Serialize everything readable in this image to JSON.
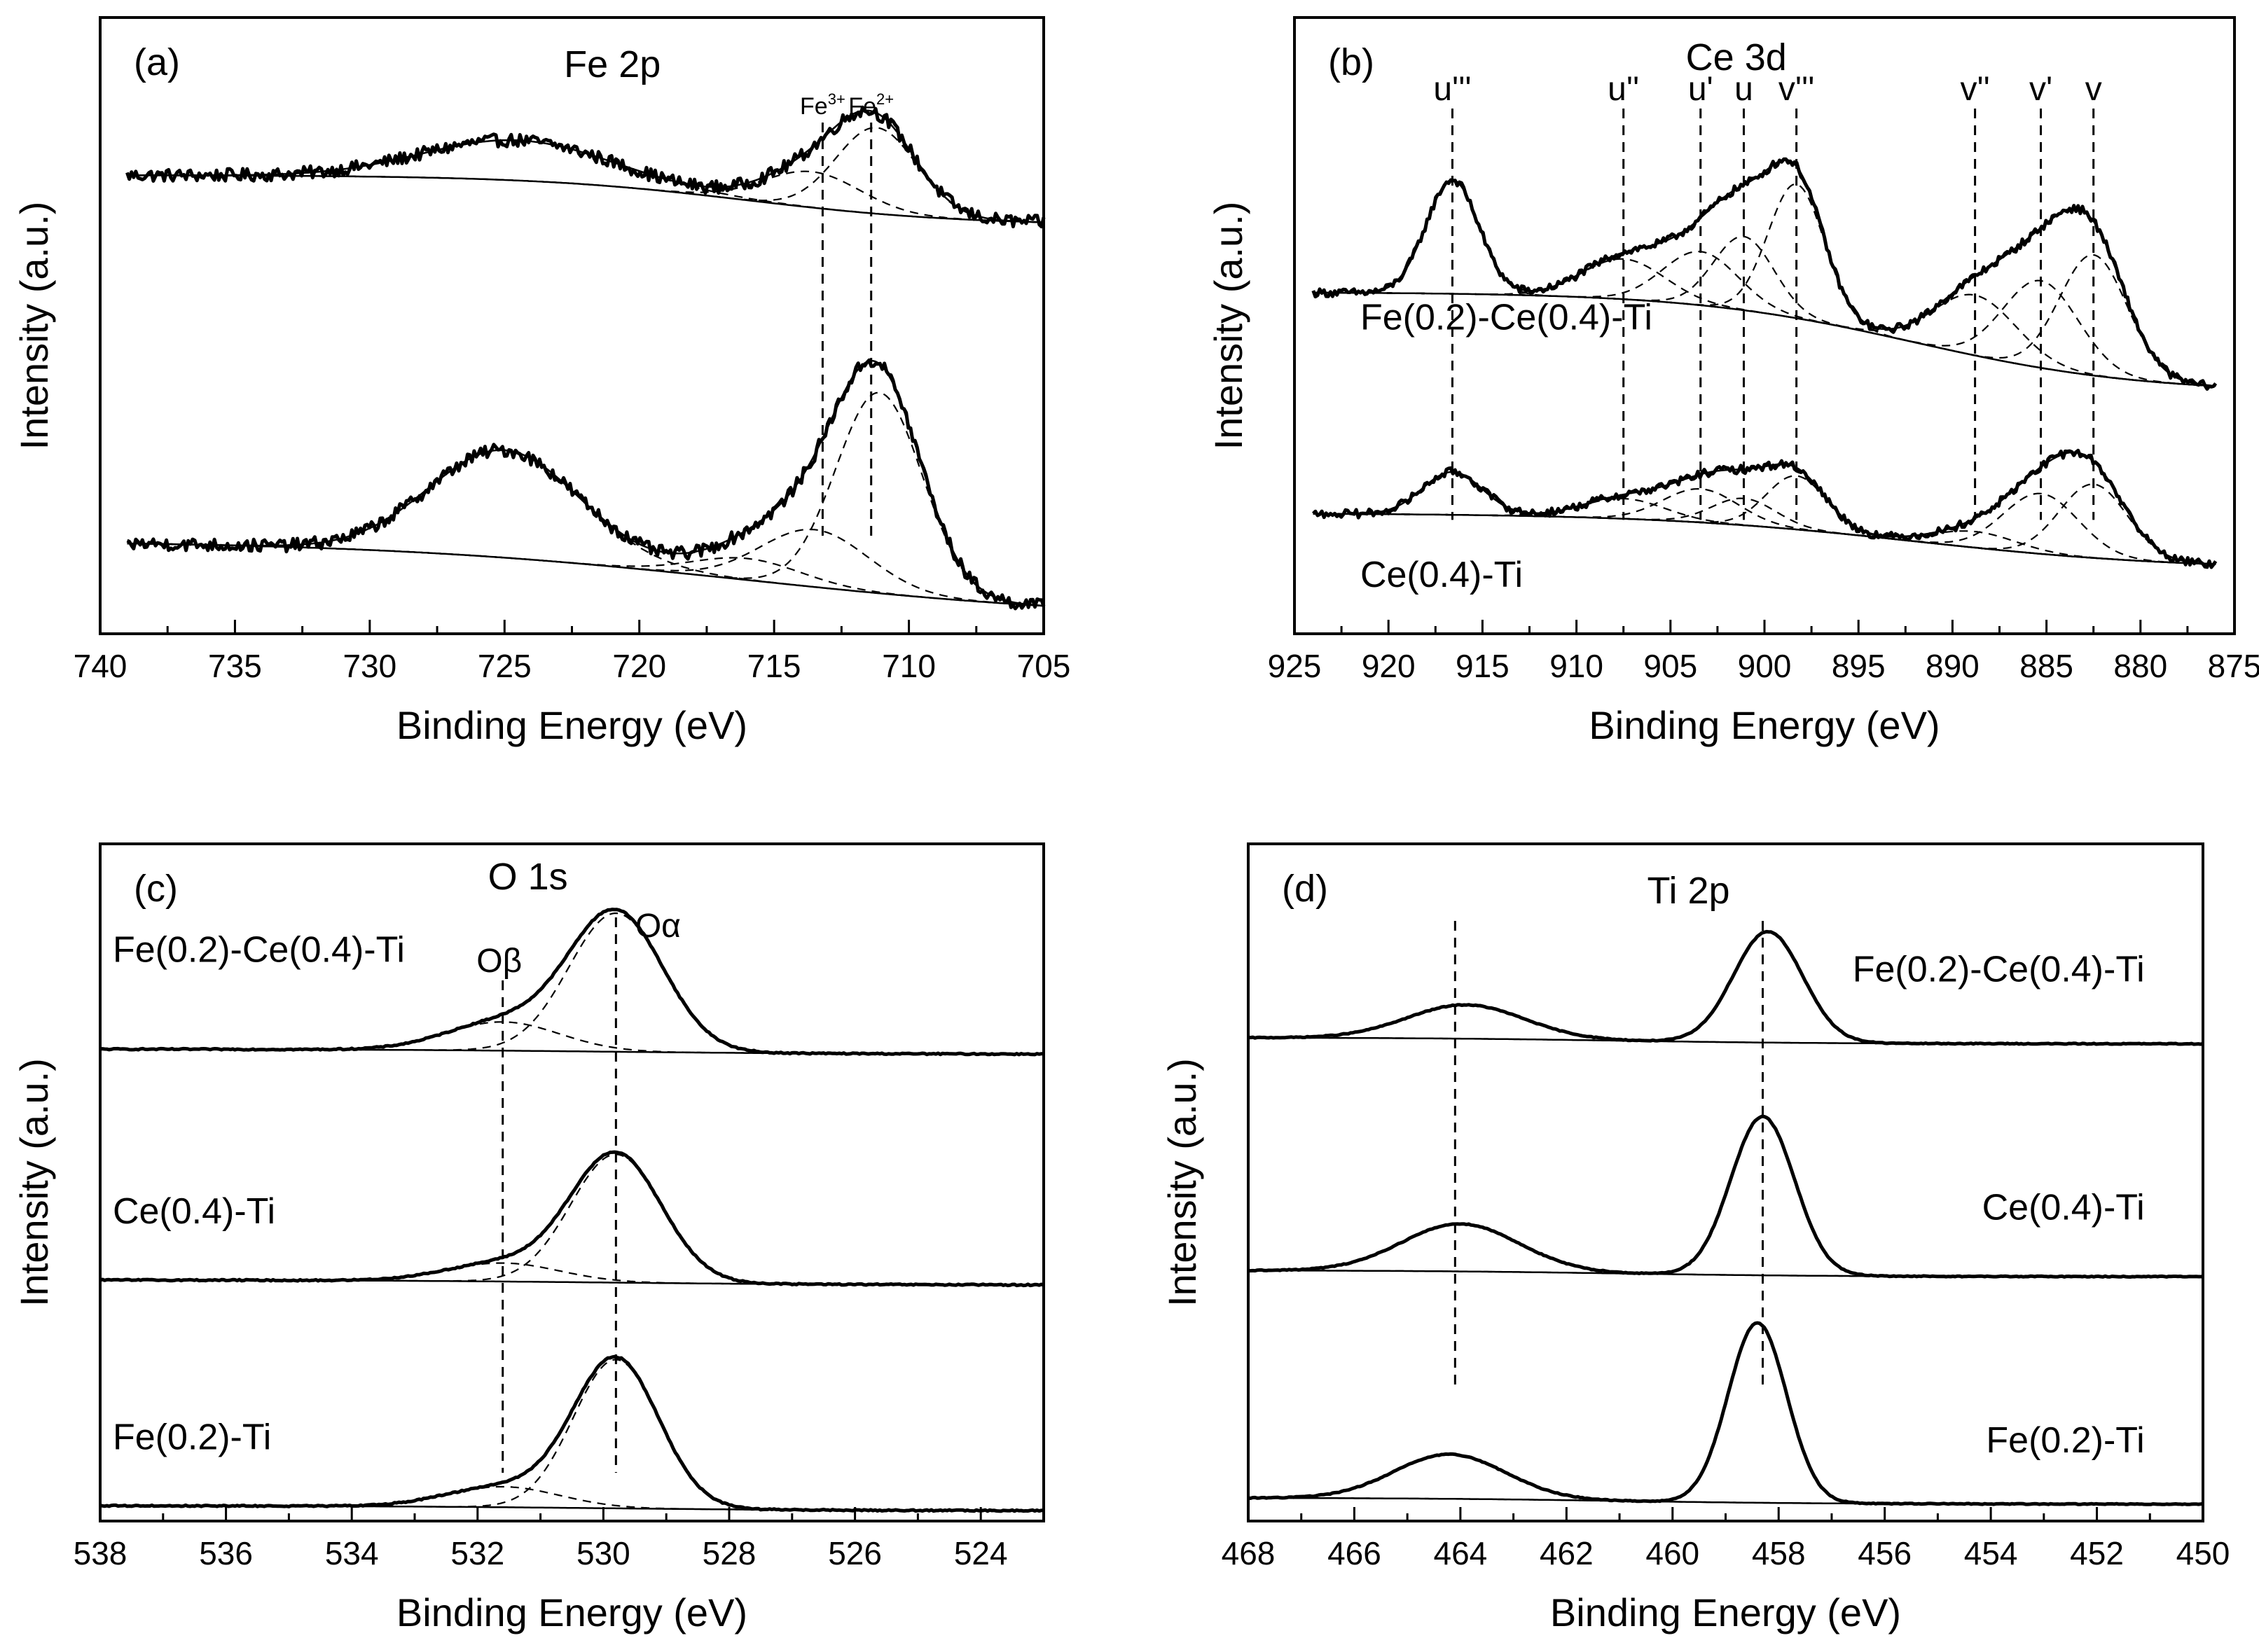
{
  "chart_data": [
    {
      "id": "a",
      "type": "line",
      "panel_tag": "(a)",
      "title": "Fe 2p",
      "xlabel": "Binding Energy (eV)",
      "ylabel": "Intensity (a.u.)",
      "xlim": [
        740,
        705
      ],
      "xticks": [
        "740",
        "735",
        "730",
        "725",
        "720",
        "715",
        "710",
        "705"
      ],
      "xtick_values": [
        740,
        735,
        730,
        725,
        720,
        715,
        710,
        705
      ],
      "x_range": [
        739,
        705
      ],
      "noise": 0.045,
      "reference_lines": [
        {
          "x": 713.2,
          "label_text": "Fe",
          "label_sup": "3+"
        },
        {
          "x": 711.4,
          "label_text": "Fe",
          "label_sup": "2+"
        }
      ],
      "series": [
        {
          "name": "upper",
          "offset": 3.05,
          "label": "",
          "background": {
            "high": 0.15,
            "low": -0.2,
            "center": 716,
            "width": 4
          },
          "peaks": [
            {
              "center": 711.2,
              "amplitude": 0.6,
              "width": 1.5
            },
            {
              "center": 713.6,
              "amplitude": 0.25,
              "width": 1.8
            },
            {
              "center": 724.5,
              "amplitude": 0.28,
              "width": 3.5
            }
          ]
        },
        {
          "name": "lower",
          "offset": 0.6,
          "label": "",
          "background": {
            "high": 0.05,
            "low": -0.5,
            "center": 716,
            "width": 7
          },
          "peaks": [
            {
              "center": 711.1,
              "amplitude": 1.4,
              "width": 1.6
            },
            {
              "center": 713.5,
              "amplitude": 0.4,
              "width": 2.0
            },
            {
              "center": 725.0,
              "amplitude": 0.75,
              "width": 2.8
            },
            {
              "center": 716.0,
              "amplitude": 0.15,
              "width": 2.0
            }
          ]
        }
      ],
      "ylim": [
        0,
        4.3
      ]
    },
    {
      "id": "b",
      "type": "line",
      "panel_tag": "(b)",
      "title": "Ce 3d",
      "xlabel": "Binding Energy (eV)",
      "ylabel": "Intensity (a.u.)",
      "xlim": [
        925,
        875
      ],
      "xticks": [
        "925",
        "920",
        "915",
        "910",
        "905",
        "900",
        "895",
        "890",
        "885",
        "880",
        "875"
      ],
      "xtick_values": [
        925,
        920,
        915,
        910,
        905,
        900,
        895,
        890,
        885,
        880,
        875
      ],
      "x_range": [
        924,
        876
      ],
      "noise": 0.03,
      "reference_lines": [
        {
          "x": 916.6,
          "label_text": "u'''"
        },
        {
          "x": 907.5,
          "label_text": "u''"
        },
        {
          "x": 903.4,
          "label_text": "u'"
        },
        {
          "x": 901.1,
          "label_text": "u"
        },
        {
          "x": 898.3,
          "label_text": "v'''"
        },
        {
          "x": 888.8,
          "label_text": "v''"
        },
        {
          "x": 885.3,
          "label_text": "v'"
        },
        {
          "x": 882.5,
          "label_text": "v"
        }
      ],
      "series": [
        {
          "name": "Fe(0.2)-Ce(0.4)-Ti",
          "offset": 2.55,
          "label": "Fe(0.2)-Ce(0.4)-Ti",
          "label_x": 921.5,
          "label_y_offset": -0.28,
          "background": {
            "high": 0.0,
            "low": -0.75,
            "center": 892,
            "width": 6
          },
          "peaks": [
            {
              "center": 916.6,
              "amplitude": 0.85,
              "width": 1.4
            },
            {
              "center": 907.5,
              "amplitude": 0.3,
              "width": 2.2
            },
            {
              "center": 903.4,
              "amplitude": 0.4,
              "width": 2.0
            },
            {
              "center": 901.1,
              "amplitude": 0.55,
              "width": 1.6
            },
            {
              "center": 898.3,
              "amplitude": 1.0,
              "width": 1.5
            },
            {
              "center": 888.8,
              "amplitude": 0.45,
              "width": 2.2
            },
            {
              "center": 885.3,
              "amplitude": 0.65,
              "width": 2.0
            },
            {
              "center": 882.5,
              "amplitude": 0.9,
              "width": 1.8
            }
          ]
        },
        {
          "name": "Ce(0.4)-Ti",
          "offset": 0.9,
          "label": "Ce(0.4)-Ti",
          "label_x": 921.5,
          "label_y_offset": -0.55,
          "background": {
            "high": 0.0,
            "low": -0.42,
            "center": 892,
            "width": 7
          },
          "peaks": [
            {
              "center": 916.6,
              "amplitude": 0.32,
              "width": 1.6
            },
            {
              "center": 907.5,
              "amplitude": 0.15,
              "width": 2.2
            },
            {
              "center": 903.4,
              "amplitude": 0.25,
              "width": 2.0
            },
            {
              "center": 901.1,
              "amplitude": 0.2,
              "width": 1.7
            },
            {
              "center": 898.3,
              "amplitude": 0.4,
              "width": 1.6
            },
            {
              "center": 888.8,
              "amplitude": 0.12,
              "width": 2.2
            },
            {
              "center": 885.3,
              "amplitude": 0.45,
              "width": 2.0
            },
            {
              "center": 882.5,
              "amplitude": 0.55,
              "width": 1.8
            }
          ]
        }
      ],
      "ylim": [
        0,
        4.6
      ]
    },
    {
      "id": "c",
      "type": "line",
      "panel_tag": "(c)",
      "title": "O 1s",
      "xlabel": "Binding Energy (eV)",
      "ylabel": "Intensity (a.u.)",
      "xlim": [
        538,
        523
      ],
      "xticks": [
        "538",
        "536",
        "534",
        "532",
        "530",
        "528",
        "526",
        "524"
      ],
      "xtick_values": [
        538,
        536,
        534,
        532,
        530,
        528,
        526,
        524
      ],
      "x_range": [
        538,
        523
      ],
      "noise": 0.006,
      "reference_lines": [
        {
          "x": 531.6,
          "label_text": "Oβ"
        },
        {
          "x": 529.8,
          "label_text": "Oα"
        }
      ],
      "series": [
        {
          "name": "Fe(0.2)-Ce(0.4)-Ti",
          "offset": 4.6,
          "label": "Fe(0.2)-Ce(0.4)-Ti",
          "label_x": 537.8,
          "label_y_offset": 0.85,
          "background": {
            "high": 0.0,
            "low": -0.05,
            "center": 530,
            "width": 2
          },
          "peaks": [
            {
              "center": 529.8,
              "amplitude": 1.35,
              "width": 0.75
            },
            {
              "center": 531.6,
              "amplitude": 0.28,
              "width": 0.9
            }
          ]
        },
        {
          "name": "Ce(0.4)-Ti",
          "offset": 2.35,
          "label": "Ce(0.4)-Ti",
          "label_x": 537.8,
          "label_y_offset": 0.55,
          "background": {
            "high": 0.0,
            "low": -0.05,
            "center": 530,
            "width": 2
          },
          "peaks": [
            {
              "center": 529.8,
              "amplitude": 1.25,
              "width": 0.72
            },
            {
              "center": 531.6,
              "amplitude": 0.18,
              "width": 0.9
            }
          ]
        },
        {
          "name": "Fe(0.2)-Ti",
          "offset": 0.15,
          "label": "Fe(0.2)-Ti",
          "label_x": 537.8,
          "label_y_offset": 0.55,
          "background": {
            "high": 0.0,
            "low": -0.05,
            "center": 530,
            "width": 2
          },
          "peaks": [
            {
              "center": 529.8,
              "amplitude": 1.45,
              "width": 0.68
            },
            {
              "center": 531.6,
              "amplitude": 0.2,
              "width": 0.9
            }
          ]
        }
      ],
      "ylim": [
        0,
        6.6
      ]
    },
    {
      "id": "d",
      "type": "line",
      "panel_tag": "(d)",
      "title": "Ti 2p",
      "xlabel": "Binding Energy (eV)",
      "ylabel": "Intensity (a.u.)",
      "xlim": [
        468,
        450
      ],
      "xticks": [
        "468",
        "466",
        "464",
        "462",
        "460",
        "458",
        "456",
        "454",
        "452",
        "450"
      ],
      "xtick_values": [
        468,
        466,
        464,
        462,
        460,
        458,
        456,
        454,
        452,
        450
      ],
      "x_range": [
        468,
        450
      ],
      "noise": 0.004,
      "reference_lines": [
        {
          "x": 464.1,
          "label_text": ""
        },
        {
          "x": 458.3,
          "label_text": ""
        }
      ],
      "series": [
        {
          "name": "Fe(0.2)-Ce(0.4)-Ti",
          "offset": 4.55,
          "label": "Fe(0.2)-Ce(0.4)-Ti",
          "label_x": 451.1,
          "label_y_offset": 0.55,
          "background": {
            "high": 0.02,
            "low": -0.04,
            "center": 461,
            "width": 2
          },
          "peaks": [
            {
              "center": 458.2,
              "amplitude": 1.05,
              "width": 0.65
            },
            {
              "center": 463.9,
              "amplitude": 0.32,
              "width": 1.1
            }
          ]
        },
        {
          "name": "Ce(0.4)-Ti",
          "offset": 2.35,
          "label": "Ce(0.4)-Ti",
          "label_x": 451.1,
          "label_y_offset": 0.5,
          "background": {
            "high": 0.02,
            "low": -0.04,
            "center": 461,
            "width": 2
          },
          "peaks": [
            {
              "center": 458.3,
              "amplitude": 1.5,
              "width": 0.6
            },
            {
              "center": 464.0,
              "amplitude": 0.45,
              "width": 1.1
            }
          ]
        },
        {
          "name": "Fe(0.2)-Ti",
          "offset": 0.2,
          "label": "Fe(0.2)-Ti",
          "label_x": 451.1,
          "label_y_offset": 0.45,
          "background": {
            "high": 0.02,
            "low": -0.04,
            "center": 461,
            "width": 2
          },
          "peaks": [
            {
              "center": 458.4,
              "amplitude": 1.7,
              "width": 0.55
            },
            {
              "center": 464.2,
              "amplitude": 0.42,
              "width": 1.05
            }
          ]
        }
      ],
      "ylim": [
        0,
        6.4
      ]
    }
  ]
}
